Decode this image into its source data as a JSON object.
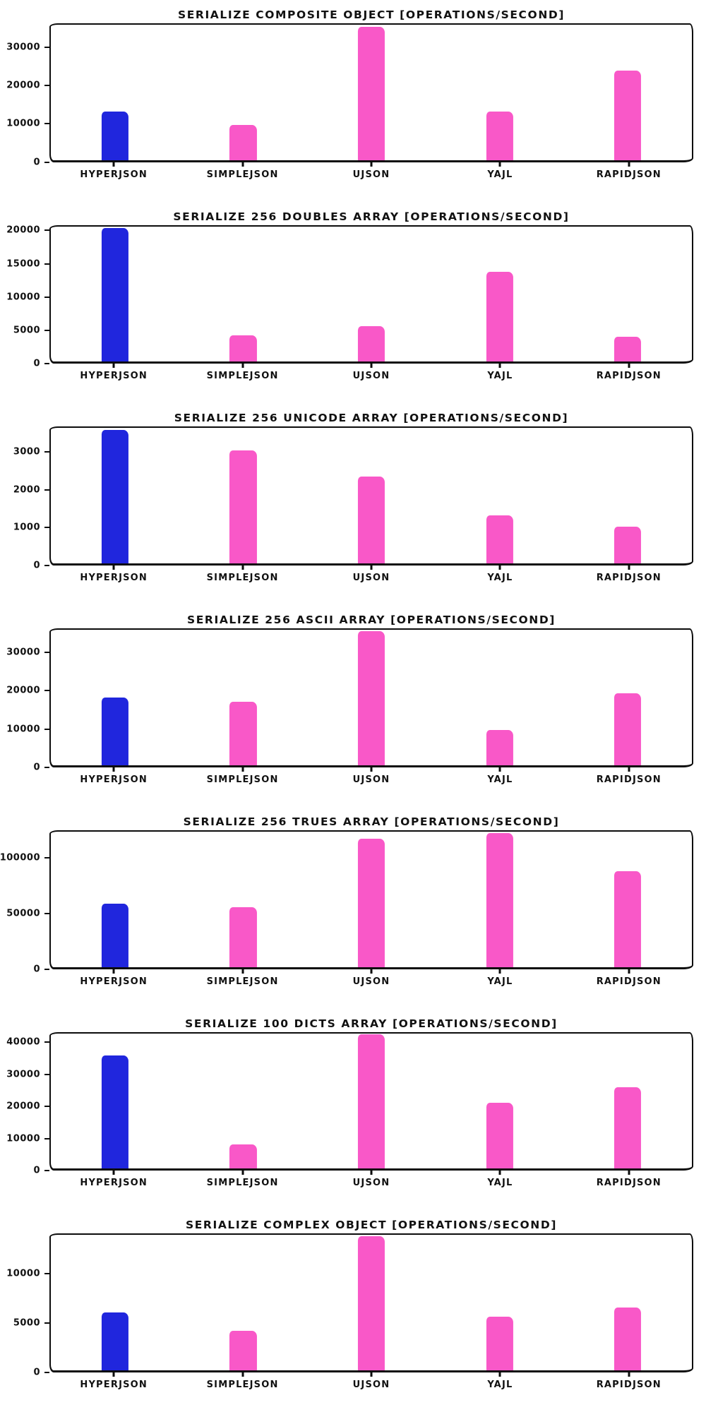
{
  "page": {
    "background": "#ffffff",
    "text_color": "#111111",
    "axis_color": "#0c0c0c"
  },
  "bar_colors": [
    "#2026dd",
    "#f958c8",
    "#f958c8",
    "#f958c8",
    "#f958c8"
  ],
  "chart_data": [
    {
      "type": "bar",
      "title": "SERIALIZE COMPOSITE OBJECT [OPERATIONS/SECOND]",
      "categories": [
        "HYPERJSON",
        "SIMPLEJSON",
        "UJSON",
        "YAJL",
        "RAPIDJSON"
      ],
      "values": [
        13000,
        9400,
        35600,
        13000,
        24000
      ],
      "yticks": [
        0,
        10000,
        20000,
        30000
      ],
      "ylim": [
        0,
        36200
      ],
      "xlabel": "",
      "ylabel": "",
      "grid": false,
      "legend": "none"
    },
    {
      "type": "bar",
      "title": "SERIALIZE 256 DOUBLES ARRAY [OPERATIONS/SECOND]",
      "categories": [
        "HYPERJSON",
        "SIMPLEJSON",
        "UJSON",
        "YAJL",
        "RAPIDJSON"
      ],
      "values": [
        20600,
        4100,
        5500,
        13800,
        3800
      ],
      "yticks": [
        0,
        5000,
        10000,
        15000,
        20000
      ],
      "ylim": [
        0,
        20800
      ],
      "xlabel": "",
      "ylabel": "",
      "grid": false,
      "legend": "none"
    },
    {
      "type": "bar",
      "title": "SERIALIZE 256 UNICODE ARRAY [OPERATIONS/SECOND]",
      "categories": [
        "HYPERJSON",
        "SIMPLEJSON",
        "UJSON",
        "YAJL",
        "RAPIDJSON"
      ],
      "values": [
        3620,
        3050,
        2350,
        1300,
        1000
      ],
      "yticks": [
        0,
        1000,
        2000,
        3000
      ],
      "ylim": [
        0,
        3660
      ],
      "xlabel": "",
      "ylabel": "",
      "grid": false,
      "legend": "none"
    },
    {
      "type": "bar",
      "title": "SERIALIZE 256 ASCII ARRAY [OPERATIONS/SECOND]",
      "categories": [
        "HYPERJSON",
        "SIMPLEJSON",
        "UJSON",
        "YAJL",
        "RAPIDJSON"
      ],
      "values": [
        18200,
        17000,
        35800,
        9500,
        19200
      ],
      "yticks": [
        0,
        10000,
        20000,
        30000
      ],
      "ylim": [
        0,
        36200
      ],
      "xlabel": "",
      "ylabel": "",
      "grid": false,
      "legend": "none"
    },
    {
      "type": "bar",
      "title": "SERIALIZE 256 TRUES ARRAY [OPERATIONS/SECOND]",
      "categories": [
        "HYPERJSON",
        "SIMPLEJSON",
        "UJSON",
        "YAJL",
        "RAPIDJSON"
      ],
      "values": [
        58000,
        55000,
        118000,
        123000,
        88000
      ],
      "yticks": [
        0,
        50000,
        100000
      ],
      "ylim": [
        0,
        124500
      ],
      "xlabel": "",
      "ylabel": "",
      "grid": false,
      "legend": "none"
    },
    {
      "type": "bar",
      "title": "SERIALIZE 100 DICTS ARRAY [OPERATIONS/SECOND]",
      "categories": [
        "HYPERJSON",
        "SIMPLEJSON",
        "UJSON",
        "YAJL",
        "RAPIDJSON"
      ],
      "values": [
        36200,
        7800,
        42800,
        21000,
        26000
      ],
      "yticks": [
        0,
        10000,
        20000,
        30000,
        40000
      ],
      "ylim": [
        0,
        43200
      ],
      "xlabel": "",
      "ylabel": "",
      "grid": false,
      "legend": "none"
    },
    {
      "type": "bar",
      "title": "SERIALIZE COMPLEX OBJECT [OPERATIONS/SECOND]",
      "categories": [
        "HYPERJSON",
        "SIMPLEJSON",
        "UJSON",
        "YAJL",
        "RAPIDJSON"
      ],
      "values": [
        6000,
        4100,
        13900,
        5600,
        6500
      ],
      "yticks": [
        0,
        5000,
        10000
      ],
      "ylim": [
        0,
        14050
      ],
      "xlabel": "",
      "ylabel": "",
      "grid": false,
      "legend": "none"
    }
  ]
}
